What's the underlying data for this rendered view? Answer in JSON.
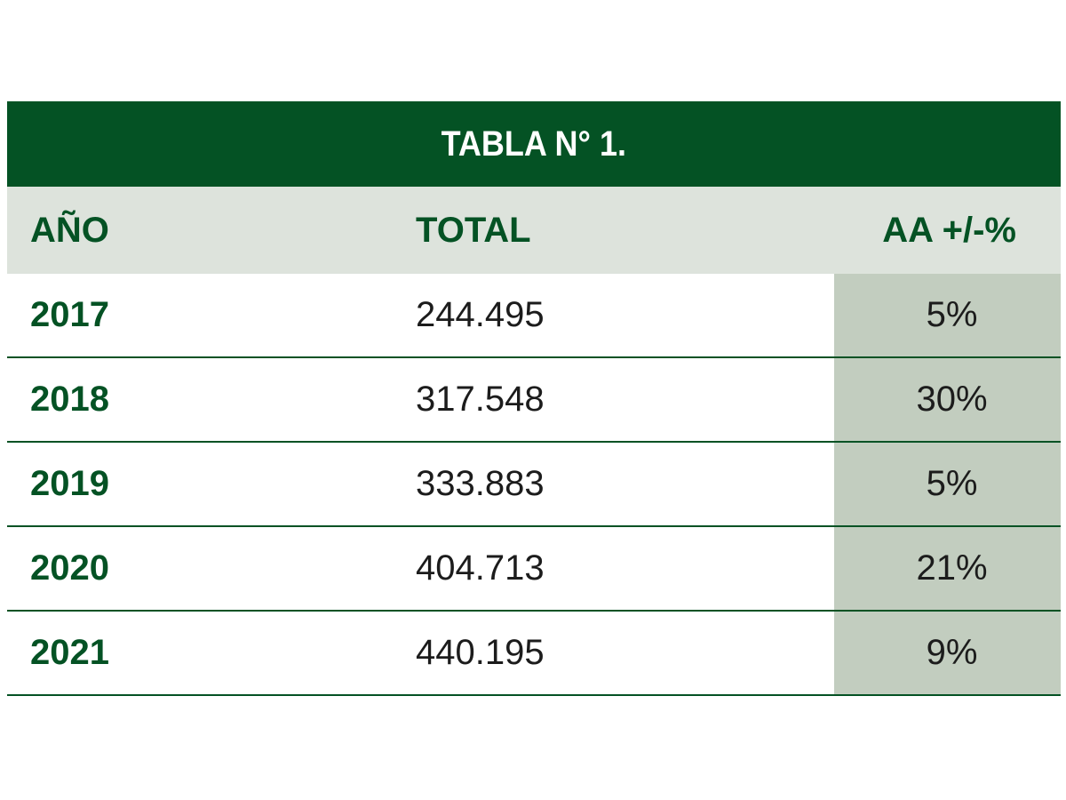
{
  "chart_data": {
    "type": "table",
    "title": "TABLA N° 1.",
    "columns": [
      "AÑO",
      "TOTAL",
      "AA +/-%"
    ],
    "rows": [
      {
        "year": "2017",
        "total": "244.495",
        "pct": "5%"
      },
      {
        "year": "2018",
        "total": "317.548",
        "pct": "30%"
      },
      {
        "year": "2019",
        "total": "333.883",
        "pct": "5%"
      },
      {
        "year": "2020",
        "total": "404.713",
        "pct": "21%"
      },
      {
        "year": "2021",
        "total": "440.195",
        "pct": "9%"
      }
    ]
  },
  "colors": {
    "title_bg": "#045224",
    "header_bg": "#dde3dc",
    "pct_col_bg": "#c2cdbf",
    "accent_text": "#045224"
  }
}
